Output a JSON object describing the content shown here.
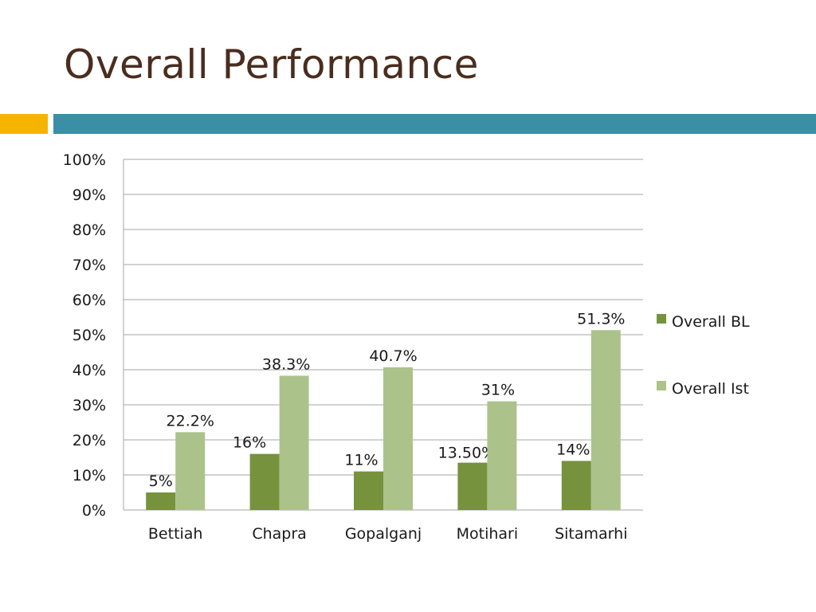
{
  "slide": {
    "title": "Overall Performance",
    "accent_colors": {
      "orange": "#f5b400",
      "teal": "#3a8ea6",
      "title": "#4a2d1f"
    }
  },
  "chart_data": {
    "type": "bar",
    "title": "",
    "xlabel": "",
    "ylabel": "",
    "categories": [
      "Bettiah",
      "Chapra",
      "Gopalganj",
      "Motihari",
      "Sitamarhi"
    ],
    "series": [
      {
        "name": "Overall BL",
        "color": "#76923c",
        "values": [
          5,
          16,
          11,
          13.5,
          14
        ],
        "labels": [
          "5%",
          "16%",
          "11%",
          "13.50%",
          "14%"
        ]
      },
      {
        "name": "Overall Ist",
        "color": "#abc38a",
        "values": [
          22.2,
          38.3,
          40.7,
          31,
          51.3
        ],
        "labels": [
          "22.2%",
          "38.3%",
          "40.7%",
          "31%",
          "51.3%"
        ]
      }
    ],
    "ylim": [
      0,
      100
    ],
    "yticks": [
      "0%",
      "10%",
      "20%",
      "30%",
      "40%",
      "50%",
      "60%",
      "70%",
      "80%",
      "90%",
      "100%"
    ],
    "grid": true,
    "legend_position": "right"
  }
}
